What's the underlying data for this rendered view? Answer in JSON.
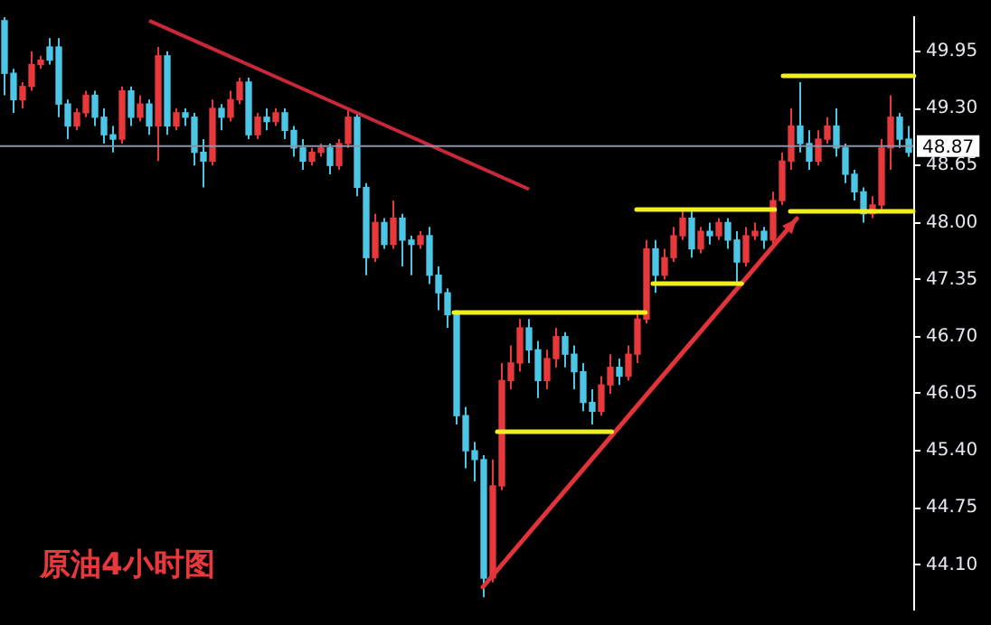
{
  "chart_data": {
    "type": "candlestick",
    "categories": [
      null,
      null,
      null,
      null,
      null,
      null,
      null,
      null,
      null,
      null,
      null,
      null,
      null,
      null,
      null,
      null,
      null,
      null,
      null,
      null,
      null,
      null,
      null,
      null,
      null,
      null,
      null,
      null,
      null,
      null,
      null,
      null,
      null,
      null,
      null,
      null,
      null,
      null,
      null,
      null,
      null,
      null,
      null,
      null,
      null,
      null,
      null,
      null,
      null,
      null,
      null,
      null,
      null,
      null,
      null,
      null,
      null,
      null,
      null,
      null,
      null,
      null,
      null,
      null,
      null,
      null,
      null,
      null,
      null,
      null,
      null,
      null,
      null,
      null,
      null,
      null,
      null,
      null,
      null,
      null,
      null,
      null,
      null,
      null,
      null,
      null,
      null,
      null,
      null,
      null,
      null,
      null,
      null,
      null,
      null,
      null,
      null,
      null,
      null,
      null,
      null
    ],
    "ohlc": [
      [
        50.3,
        50.34,
        49.45,
        49.7
      ],
      [
        49.7,
        49.75,
        49.25,
        49.4
      ],
      [
        49.4,
        49.6,
        49.3,
        49.55
      ],
      [
        49.55,
        49.95,
        49.5,
        49.8
      ],
      [
        49.8,
        49.9,
        49.75,
        49.85
      ],
      [
        50.0,
        50.1,
        49.8,
        49.85
      ],
      [
        50.0,
        50.1,
        49.2,
        49.35
      ],
      [
        49.35,
        49.4,
        48.95,
        49.1
      ],
      [
        49.1,
        49.3,
        49.05,
        49.25
      ],
      [
        49.25,
        49.5,
        49.2,
        49.45
      ],
      [
        49.45,
        49.5,
        49.1,
        49.2
      ],
      [
        49.2,
        49.3,
        48.9,
        49.0
      ],
      [
        49.0,
        49.1,
        48.8,
        48.95
      ],
      [
        48.95,
        49.55,
        48.9,
        49.5
      ],
      [
        49.5,
        49.55,
        49.1,
        49.2
      ],
      [
        49.2,
        49.45,
        49.15,
        49.35
      ],
      [
        49.35,
        49.4,
        49.0,
        49.1
      ],
      [
        49.1,
        50.0,
        48.7,
        49.9
      ],
      [
        49.9,
        49.95,
        49.0,
        49.1
      ],
      [
        49.1,
        49.3,
        49.05,
        49.25
      ],
      [
        49.25,
        49.3,
        49.1,
        49.2
      ],
      [
        49.2,
        49.25,
        48.65,
        48.8
      ],
      [
        48.8,
        48.95,
        48.4,
        48.7
      ],
      [
        48.7,
        49.4,
        48.65,
        49.3
      ],
      [
        49.3,
        49.35,
        49.05,
        49.2
      ],
      [
        49.2,
        49.5,
        49.15,
        49.4
      ],
      [
        49.4,
        49.65,
        49.35,
        49.6
      ],
      [
        49.6,
        49.65,
        48.95,
        49.0
      ],
      [
        49.0,
        49.25,
        48.95,
        49.2
      ],
      [
        49.2,
        49.3,
        49.05,
        49.15
      ],
      [
        49.15,
        49.3,
        49.1,
        49.25
      ],
      [
        49.25,
        49.3,
        48.95,
        49.05
      ],
      [
        49.05,
        49.1,
        48.75,
        48.85
      ],
      [
        48.85,
        48.95,
        48.6,
        48.7
      ],
      [
        48.7,
        48.85,
        48.65,
        48.8
      ],
      [
        48.8,
        48.9,
        48.75,
        48.85
      ],
      [
        48.85,
        48.9,
        48.55,
        48.65
      ],
      [
        48.65,
        48.95,
        48.6,
        48.9
      ],
      [
        48.9,
        49.3,
        48.85,
        49.2
      ],
      [
        49.2,
        49.25,
        48.3,
        48.4
      ],
      [
        48.4,
        48.45,
        47.4,
        47.6
      ],
      [
        47.6,
        48.1,
        47.55,
        48.0
      ],
      [
        48.0,
        48.05,
        47.7,
        47.75
      ],
      [
        47.75,
        48.25,
        47.7,
        48.05
      ],
      [
        48.05,
        48.1,
        47.5,
        47.8
      ],
      [
        47.8,
        47.85,
        47.4,
        47.75
      ],
      [
        47.75,
        47.9,
        47.7,
        47.85
      ],
      [
        47.85,
        47.95,
        47.3,
        47.4
      ],
      [
        47.4,
        47.5,
        47.0,
        47.2
      ],
      [
        47.2,
        47.25,
        46.8,
        46.95
      ],
      [
        46.95,
        47.0,
        45.7,
        45.8
      ],
      [
        45.8,
        45.9,
        45.2,
        45.4
      ],
      [
        45.4,
        45.5,
        45.05,
        45.3
      ],
      [
        45.3,
        45.35,
        43.73,
        43.95
      ],
      [
        43.95,
        45.3,
        43.9,
        45.0
      ],
      [
        45.0,
        46.4,
        44.95,
        46.2
      ],
      [
        46.2,
        46.6,
        46.1,
        46.4
      ],
      [
        46.4,
        46.9,
        46.3,
        46.8
      ],
      [
        46.8,
        46.9,
        46.4,
        46.55
      ],
      [
        46.55,
        46.65,
        46.0,
        46.2
      ],
      [
        46.2,
        46.55,
        46.1,
        46.45
      ],
      [
        46.45,
        46.8,
        46.35,
        46.7
      ],
      [
        46.7,
        46.75,
        46.35,
        46.5
      ],
      [
        46.5,
        46.6,
        46.1,
        46.3
      ],
      [
        46.3,
        46.4,
        45.85,
        45.95
      ],
      [
        45.95,
        46.1,
        45.7,
        45.85
      ],
      [
        45.85,
        46.25,
        45.8,
        46.15
      ],
      [
        46.15,
        46.5,
        46.05,
        46.35
      ],
      [
        46.35,
        46.45,
        46.15,
        46.25
      ],
      [
        46.25,
        46.6,
        46.2,
        46.5
      ],
      [
        46.5,
        47.0,
        46.4,
        46.9
      ],
      [
        46.9,
        47.8,
        46.85,
        47.7
      ],
      [
        47.7,
        47.8,
        47.2,
        47.4
      ],
      [
        47.4,
        47.7,
        47.35,
        47.6
      ],
      [
        47.6,
        47.95,
        47.55,
        47.85
      ],
      [
        47.85,
        48.15,
        47.8,
        48.05
      ],
      [
        48.05,
        48.15,
        47.6,
        47.7
      ],
      [
        47.7,
        47.95,
        47.65,
        47.9
      ],
      [
        47.9,
        48.0,
        47.75,
        47.85
      ],
      [
        47.85,
        48.05,
        47.8,
        48.0
      ],
      [
        48.0,
        48.05,
        47.7,
        47.8
      ],
      [
        47.8,
        47.9,
        47.3,
        47.55
      ],
      [
        47.55,
        47.95,
        47.5,
        47.85
      ],
      [
        47.85,
        48.0,
        47.8,
        47.9
      ],
      [
        47.9,
        47.95,
        47.7,
        47.8
      ],
      [
        47.8,
        48.35,
        47.75,
        48.25
      ],
      [
        48.25,
        48.8,
        48.2,
        48.7
      ],
      [
        48.7,
        49.3,
        48.6,
        49.1
      ],
      [
        49.1,
        49.6,
        48.8,
        48.9
      ],
      [
        48.9,
        49.05,
        48.6,
        48.7
      ],
      [
        48.7,
        49.05,
        48.65,
        48.95
      ],
      [
        48.95,
        49.2,
        48.9,
        49.1
      ],
      [
        49.1,
        49.3,
        48.75,
        48.85
      ],
      [
        48.85,
        48.9,
        48.45,
        48.55
      ],
      [
        48.55,
        48.6,
        48.25,
        48.35
      ],
      [
        48.35,
        48.4,
        48.0,
        48.1
      ],
      [
        48.1,
        48.3,
        48.05,
        48.2
      ],
      [
        48.2,
        48.95,
        48.15,
        48.85
      ],
      [
        48.85,
        49.45,
        48.6,
        49.2
      ],
      [
        49.2,
        49.25,
        48.85,
        48.95
      ],
      [
        48.95,
        49.1,
        48.75,
        48.8
      ]
    ],
    "colors": [
      "#4cc6e6",
      "#4cc6e6",
      "#e8383c",
      "#e8383c",
      "#e8383c",
      "#4cc6e6",
      "#4cc6e6",
      "#4cc6e6",
      "#e8383c",
      "#e8383c",
      "#4cc6e6",
      "#4cc6e6",
      "#4cc6e6",
      "#e8383c",
      "#4cc6e6",
      "#e8383c",
      "#4cc6e6",
      "#e8383c",
      "#4cc6e6",
      "#e8383c",
      "#4cc6e6",
      "#4cc6e6",
      "#4cc6e6",
      "#e8383c",
      "#4cc6e6",
      "#e8383c",
      "#e8383c",
      "#4cc6e6",
      "#e8383c",
      "#4cc6e6",
      "#e8383c",
      "#4cc6e6",
      "#4cc6e6",
      "#4cc6e6",
      "#e8383c",
      "#e8383c",
      "#4cc6e6",
      "#e8383c",
      "#e8383c",
      "#4cc6e6",
      "#4cc6e6",
      "#e8383c",
      "#4cc6e6",
      "#e8383c",
      "#4cc6e6",
      "#4cc6e6",
      "#e8383c",
      "#4cc6e6",
      "#4cc6e6",
      "#4cc6e6",
      "#4cc6e6",
      "#4cc6e6",
      "#4cc6e6",
      "#4cc6e6",
      "#e8383c",
      "#e8383c",
      "#e8383c",
      "#e8383c",
      "#4cc6e6",
      "#4cc6e6",
      "#e8383c",
      "#e8383c",
      "#4cc6e6",
      "#4cc6e6",
      "#4cc6e6",
      "#4cc6e6",
      "#e8383c",
      "#e8383c",
      "#4cc6e6",
      "#e8383c",
      "#e8383c",
      "#e8383c",
      "#4cc6e6",
      "#e8383c",
      "#e8383c",
      "#e8383c",
      "#4cc6e6",
      "#e8383c",
      "#4cc6e6",
      "#e8383c",
      "#4cc6e6",
      "#4cc6e6",
      "#e8383c",
      "#e8383c",
      "#4cc6e6",
      "#e8383c",
      "#e8383c",
      "#e8383c",
      "#4cc6e6",
      "#4cc6e6",
      "#e8383c",
      "#e8383c",
      "#4cc6e6",
      "#4cc6e6",
      "#4cc6e6",
      "#4cc6e6",
      "#e8383c",
      "#e8383c",
      "#e8383c",
      "#4cc6e6",
      "#4cc6e6"
    ],
    "series": [
      {
        "type": "line",
        "color": "#c8283a",
        "values": [
          null,
          null,
          null,
          null,
          null,
          null,
          null,
          null,
          null,
          null,
          null,
          null,
          null,
          null,
          null,
          null,
          50.3,
          null,
          null,
          null,
          null,
          null,
          null,
          null,
          null,
          null,
          null,
          null,
          null,
          null,
          null,
          null,
          null,
          null,
          null,
          null,
          null,
          null,
          null,
          null,
          null,
          null,
          null,
          null,
          null,
          null,
          null,
          null,
          null,
          null,
          null,
          null,
          null,
          null,
          null,
          null,
          null,
          null,
          48.38,
          null,
          null,
          null,
          null,
          null,
          null,
          null,
          null,
          null,
          null,
          null,
          null,
          null,
          null,
          null,
          null,
          null,
          null,
          null,
          null,
          null,
          null,
          null,
          null,
          null,
          null,
          null,
          null,
          null,
          null,
          null,
          null,
          null,
          null,
          null,
          null,
          null,
          null,
          null,
          null,
          null,
          null
        ]
      }
    ],
    "ylim": [
      43.6,
      50.35
    ],
    "yticks": [
      {
        "value": 44.1,
        "label": "44.10"
      },
      {
        "value": 44.75,
        "label": "44.75"
      },
      {
        "value": 45.4,
        "label": "45.40"
      },
      {
        "value": 46.05,
        "label": "46.05"
      },
      {
        "value": 46.7,
        "label": "46.70"
      },
      {
        "value": 47.35,
        "label": "47.35"
      },
      {
        "value": 48.0,
        "label": "48.00"
      },
      {
        "value": 48.65,
        "label": "48.65"
      },
      {
        "value": 49.3,
        "label": "49.30"
      },
      {
        "value": 49.95,
        "label": "49.95"
      }
    ],
    "ref_lines": [
      {
        "axis": "y",
        "value": 48.87,
        "label": "48.87",
        "color": "#8a94a8"
      }
    ],
    "annotations": [
      "原油4小时图"
    ],
    "tick_labels": "y"
  }
}
